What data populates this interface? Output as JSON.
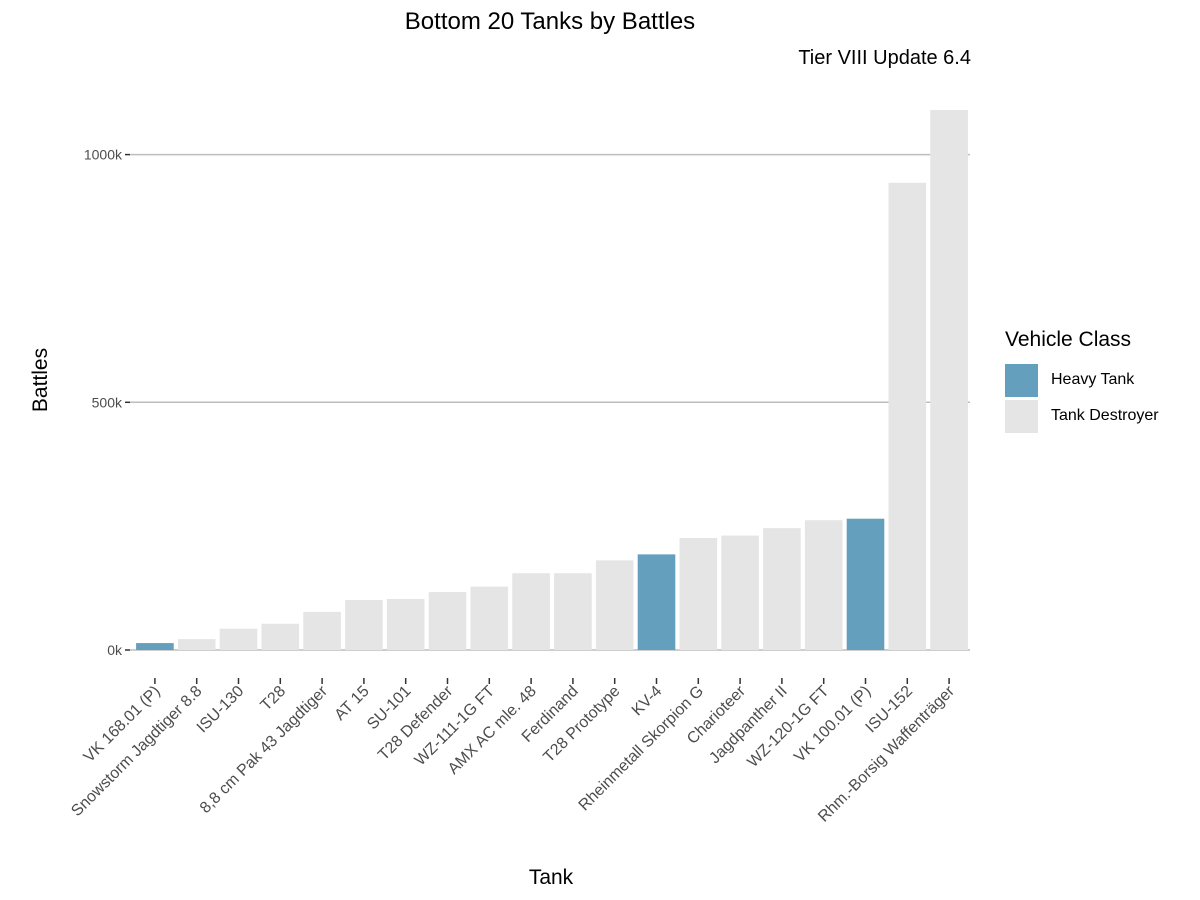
{
  "chart_data": {
    "type": "bar",
    "title": "Bottom 20 Tanks by Battles",
    "subtitle": "Tier VIII Update 6.4",
    "xlabel": "Tank",
    "ylabel": "Battles",
    "ylim": [
      0,
      1090000
    ],
    "yticks": [
      {
        "value": 0,
        "label": "0k"
      },
      {
        "value": 500000,
        "label": "500k"
      },
      {
        "value": 1000000,
        "label": "1000k"
      }
    ],
    "grid": true,
    "legend": {
      "title": "Vehicle Class",
      "position": "right",
      "entries": [
        {
          "name": "Heavy Tank",
          "color": "#659fbe"
        },
        {
          "name": "Tank Destroyer",
          "color": "#e5e5e5"
        }
      ]
    },
    "categories": [
      "VK 168.01 (P)",
      "Snowstorm Jagdtiger 8.8",
      "ISU-130",
      "T28",
      "8,8 cm Pak 43 Jagdtiger",
      "AT 15",
      "SU-101",
      "T28 Defender",
      "WZ-111-1G FT",
      "AMX AC mle. 48",
      "Ferdinand",
      "T28 Prototype",
      "KV-4",
      "Rheinmetall Skorpion G",
      "Charioteer",
      "Jagdpanther II",
      "WZ-120-1G FT",
      "VK 100.01 (P)",
      "ISU-152",
      "Rhm.-Borsig Waffenträger"
    ],
    "values": [
      14000,
      22000,
      43000,
      53000,
      77000,
      101000,
      103000,
      117000,
      128000,
      155000,
      155000,
      181000,
      193000,
      226000,
      231000,
      246000,
      262000,
      265000,
      943000,
      1090000
    ],
    "classes": [
      "Heavy Tank",
      "Tank Destroyer",
      "Tank Destroyer",
      "Tank Destroyer",
      "Tank Destroyer",
      "Tank Destroyer",
      "Tank Destroyer",
      "Tank Destroyer",
      "Tank Destroyer",
      "Tank Destroyer",
      "Tank Destroyer",
      "Tank Destroyer",
      "Heavy Tank",
      "Tank Destroyer",
      "Tank Destroyer",
      "Tank Destroyer",
      "Tank Destroyer",
      "Heavy Tank",
      "Tank Destroyer",
      "Tank Destroyer"
    ]
  }
}
